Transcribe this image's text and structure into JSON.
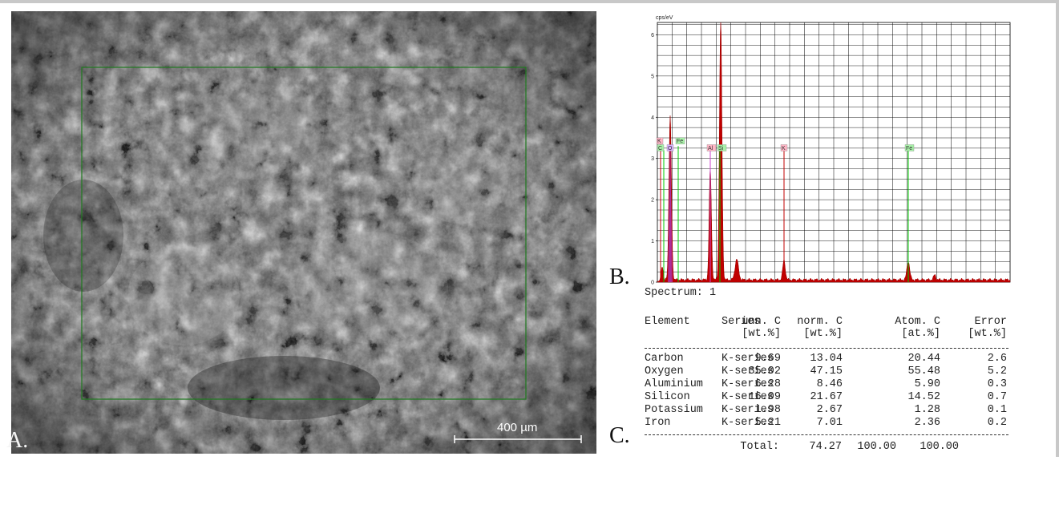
{
  "panels": {
    "a_letter": "A.",
    "b_letter": "B.",
    "c_letter": "C."
  },
  "micrograph": {
    "scale_label": "400 µm"
  },
  "spectrum": {
    "y_unit": "cps/eV",
    "y_ticks": [
      "0",
      "1",
      "2",
      "3",
      "4",
      "5",
      "6"
    ],
    "peak_tags": [
      "K",
      "C",
      "O",
      "Fe",
      "Al",
      "Si",
      "K",
      "Fe"
    ],
    "colors": {
      "trace": "#c00000",
      "grid": "#000000",
      "green": "#00cc00",
      "purple": "#aa33aa"
    }
  },
  "table": {
    "spectrum_title": "Spectrum: 1",
    "headers": [
      "Element",
      "Series",
      "unn. C",
      "norm. C",
      "Atom. C",
      "Error"
    ],
    "units": [
      "[wt.%]",
      "[wt.%]",
      "[at.%]",
      "[wt.%]"
    ],
    "rows": [
      {
        "element": "Carbon",
        "series": "K-series",
        "unn": "9.69",
        "norm": "13.04",
        "atom": "20.44",
        "error": "2.6"
      },
      {
        "element": "Oxygen",
        "series": "K-series",
        "unn": "35.02",
        "norm": "47.15",
        "atom": "55.48",
        "error": "5.2"
      },
      {
        "element": "Aluminium",
        "series": "K-series",
        "unn": "6.28",
        "norm": "8.46",
        "atom": "5.90",
        "error": "0.3"
      },
      {
        "element": "Silicon",
        "series": "K-series",
        "unn": "16.09",
        "norm": "21.67",
        "atom": "14.52",
        "error": "0.7"
      },
      {
        "element": "Potassium",
        "series": "K-series",
        "unn": "1.98",
        "norm": "2.67",
        "atom": "1.28",
        "error": "0.1"
      },
      {
        "element": "Iron",
        "series": "K-series",
        "unn": "5.21",
        "norm": "7.01",
        "atom": "2.36",
        "error": "0.2"
      }
    ],
    "total_label": "Total:",
    "total_unn": "74.27",
    "total_norm": "100.00",
    "total_atom": "100.00"
  }
}
